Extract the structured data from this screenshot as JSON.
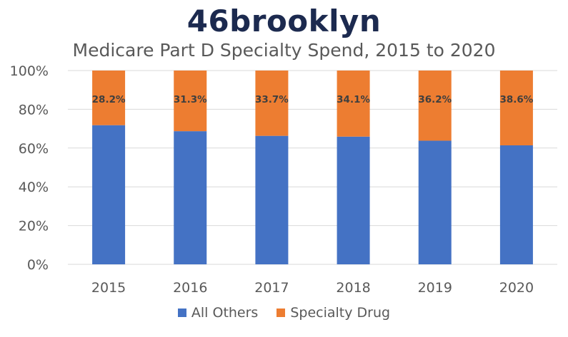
{
  "brand": {
    "logo_text": "46brooklyn"
  },
  "colors": {
    "all_others": "#4472c4",
    "specialty": "#ed7d31",
    "gridline": "#d9d9d9",
    "axis_text": "#595959"
  },
  "chart_data": {
    "type": "bar",
    "stacked": true,
    "percent_stacked": true,
    "title": "Medicare Part D Specialty Spend, 2015 to 2020",
    "xlabel": "",
    "ylabel": "",
    "categories": [
      "2015",
      "2016",
      "2017",
      "2018",
      "2019",
      "2020"
    ],
    "series": [
      {
        "name": "All Others",
        "values": [
          71.8,
          68.7,
          66.3,
          65.9,
          63.8,
          61.4
        ]
      },
      {
        "name": "Specialty Drug",
        "values": [
          28.2,
          31.3,
          33.7,
          34.1,
          36.2,
          38.6
        ],
        "data_labels": [
          "28.2%",
          "31.3%",
          "33.7%",
          "34.1%",
          "36.2%",
          "38.6%"
        ]
      }
    ],
    "y_ticks": [
      "0%",
      "20%",
      "40%",
      "60%",
      "80%",
      "100%"
    ],
    "ylim": [
      0,
      100
    ],
    "grid": true,
    "legend_position": "bottom"
  }
}
